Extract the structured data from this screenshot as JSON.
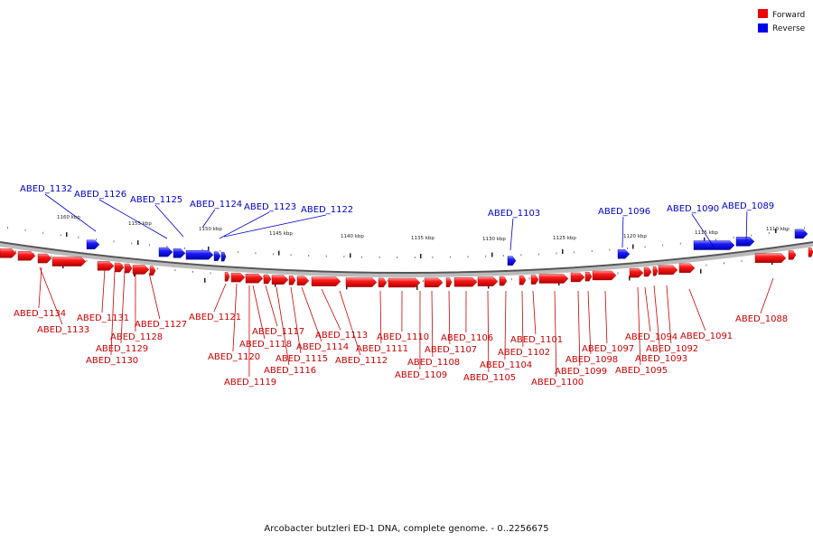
{
  "legend": {
    "forward": {
      "label": "Forward",
      "color": "#ee0000"
    },
    "reverse": {
      "label": "Reverse",
      "color": "#0000ee"
    }
  },
  "caption": "Arcobacter butzleri ED-1 DNA, complete genome. - 0..2256675",
  "scale": {
    "unit": "kbp",
    "ticks": [
      "1160 kbp",
      "1155 kbp",
      "1150 kbp",
      "1145 kbp",
      "1140 kbp",
      "1135 kbp",
      "1130 kbp",
      "1125 kbp",
      "1120 kbp",
      "1115 kbp",
      "1110 kbp"
    ]
  },
  "genes": {
    "forward": [
      "ABED_1134",
      "ABED_1133",
      "ABED_1131",
      "ABED_1130",
      "ABED_1129",
      "ABED_1128",
      "ABED_1127",
      "ABED_1121",
      "ABED_1120",
      "ABED_1119",
      "ABED_1118",
      "ABED_1117",
      "ABED_1116",
      "ABED_1115",
      "ABED_1114",
      "ABED_1113",
      "ABED_1112",
      "ABED_1111",
      "ABED_1110",
      "ABED_1109",
      "ABED_1108",
      "ABED_1107",
      "ABED_1106",
      "ABED_1105",
      "ABED_1104",
      "ABED_1102",
      "ABED_1101",
      "ABED_1100",
      "ABED_1099",
      "ABED_1098",
      "ABED_1097",
      "ABED_1095",
      "ABED_1094",
      "ABED_1093",
      "ABED_1092",
      "ABED_1091",
      "ABED_1088"
    ],
    "reverse": [
      "ABED_1132",
      "ABED_1126",
      "ABED_1125",
      "ABED_1124",
      "ABED_1123",
      "ABED_1122",
      "ABED_1103",
      "ABED_1096",
      "ABED_1090",
      "ABED_1089"
    ]
  }
}
